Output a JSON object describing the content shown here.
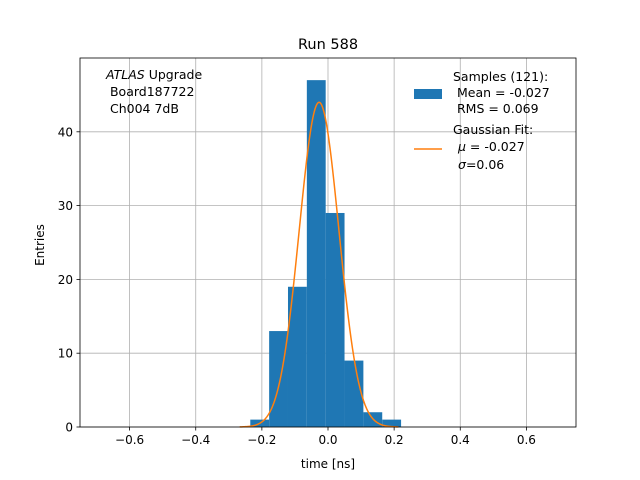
{
  "chart_data": {
    "type": "bar",
    "title": "Run 588",
    "xlabel": "time [ns]",
    "ylabel": "Entries",
    "xlim": [
      -0.75,
      0.75
    ],
    "ylim": [
      0,
      50
    ],
    "xticks": [
      -0.6,
      -0.4,
      -0.2,
      0.0,
      0.2,
      0.4,
      0.6
    ],
    "xtick_labels": [
      "−0.6",
      "−0.4",
      "−0.2",
      "0.0",
      "0.2",
      "0.4",
      "0.6"
    ],
    "yticks": [
      0,
      10,
      20,
      30,
      40
    ],
    "ytick_labels": [
      "0",
      "10",
      "20",
      "30",
      "40"
    ],
    "grid": true,
    "histogram": {
      "bin_edges": [
        -0.235,
        -0.178,
        -0.121,
        -0.064,
        -0.007,
        0.05,
        0.107,
        0.164,
        0.221
      ],
      "counts": [
        1,
        13,
        19,
        47,
        29,
        9,
        2,
        1
      ],
      "color": "#1f77b4"
    },
    "fit": {
      "type": "gaussian",
      "mu": -0.027,
      "sigma": 0.06,
      "amplitude": 44,
      "color": "#ff7f0e"
    },
    "annotation": {
      "line1_italic": "ATLAS",
      "line1_rest": " Upgrade",
      "line2": " Board187722",
      "line3": " Ch004 7dB"
    },
    "legend": {
      "position": "top-right",
      "samples_lines": [
        "Samples (121):",
        " Mean = -0.027",
        " RMS = 0.069"
      ],
      "fit_title": "Gaussian Fit:",
      "fit_mu": " = -0.027",
      "fit_sigma": "=0.06"
    }
  }
}
